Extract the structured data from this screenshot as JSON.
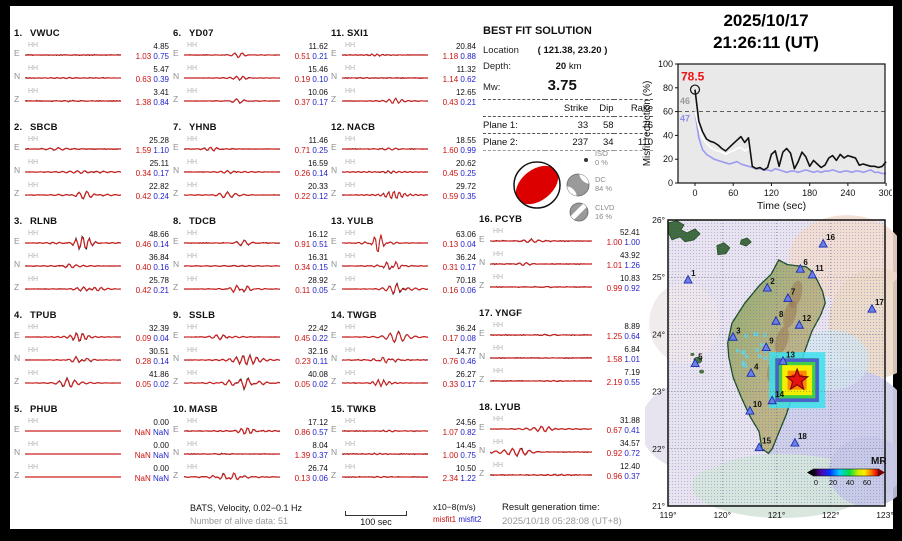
{
  "header": {
    "date": "2025/10/17",
    "time": "21:26:11  (UT)"
  },
  "best_fit": {
    "title": "BEST FIT SOLUTION",
    "location_label": "Location",
    "location_value": "( 121.38,  23.20 )",
    "depth_label": "Depth:",
    "depth_value": "20",
    "depth_unit": "km",
    "mw_label": "Mw:",
    "mw_value": "3.75",
    "table": {
      "headers": [
        "Strike",
        "Dip",
        "Rake"
      ],
      "rows": [
        {
          "label": "Plane 1:",
          "strike": "33",
          "dip": "58",
          "rake": "76"
        },
        {
          "label": "Plane 2:",
          "strike": "237",
          "dip": "34",
          "rake": "110"
        }
      ]
    },
    "decomposition": [
      {
        "name": "ISO",
        "pct": "0 %"
      },
      {
        "name": "DC",
        "pct": "84 %"
      },
      {
        "name": "CLVD",
        "pct": "16 %"
      }
    ]
  },
  "stations": [
    {
      "num": "1.",
      "code": "VWUC",
      "channels": [
        {
          "ch": "E",
          "band": "HH",
          "amp": "4.85",
          "m1": "1.03",
          "m2": "0.75"
        },
        {
          "ch": "N",
          "band": "HH",
          "amp": "5.47",
          "m1": "0.63",
          "m2": "0.39"
        },
        {
          "ch": "Z",
          "band": "HH",
          "amp": "3.41",
          "m1": "1.38",
          "m2": "0.84"
        }
      ]
    },
    {
      "num": "2.",
      "code": "SBCB",
      "channels": [
        {
          "ch": "E",
          "band": "HH",
          "amp": "25.28",
          "m1": "1.59",
          "m2": "1.10"
        },
        {
          "ch": "N",
          "band": "HH",
          "amp": "25.11",
          "m1": "0.34",
          "m2": "0.17"
        },
        {
          "ch": "Z",
          "band": "HH",
          "amp": "22.82",
          "m1": "0.42",
          "m2": "0.24"
        }
      ]
    },
    {
      "num": "3.",
      "code": "RLNB",
      "channels": [
        {
          "ch": "E",
          "band": "HH",
          "amp": "48.66",
          "m1": "0.46",
          "m2": "0.14"
        },
        {
          "ch": "N",
          "band": "HH",
          "amp": "36.84",
          "m1": "0.40",
          "m2": "0.16"
        },
        {
          "ch": "Z",
          "band": "HH",
          "amp": "25.78",
          "m1": "0.42",
          "m2": "0.21"
        }
      ]
    },
    {
      "num": "4.",
      "code": "TPUB",
      "channels": [
        {
          "ch": "E",
          "band": "HH",
          "amp": "32.39",
          "m1": "0.09",
          "m2": "0.04"
        },
        {
          "ch": "N",
          "band": "HH",
          "amp": "30.51",
          "m1": "0.28",
          "m2": "0.14"
        },
        {
          "ch": "Z",
          "band": "HH",
          "amp": "41.86",
          "m1": "0.05",
          "m2": "0.02"
        }
      ]
    },
    {
      "num": "5.",
      "code": "PHUB",
      "channels": [
        {
          "ch": "E",
          "band": "HH",
          "amp": "0.00",
          "m1": "NaN",
          "m2": "NaN"
        },
        {
          "ch": "N",
          "band": "HH",
          "amp": "0.00",
          "m1": "NaN",
          "m2": "NaN"
        },
        {
          "ch": "Z",
          "band": "HH",
          "amp": "0.00",
          "m1": "NaN",
          "m2": "NaN"
        }
      ]
    },
    {
      "num": "6.",
      "code": "YD07",
      "channels": [
        {
          "ch": "E",
          "band": "HH",
          "amp": "11.62",
          "m1": "0.51",
          "m2": "0.21"
        },
        {
          "ch": "N",
          "band": "HH",
          "amp": "15.46",
          "m1": "0.19",
          "m2": "0.10"
        },
        {
          "ch": "Z",
          "band": "HH",
          "amp": "10.06",
          "m1": "0.37",
          "m2": "0.17"
        }
      ]
    },
    {
      "num": "7.",
      "code": "YHNB",
      "channels": [
        {
          "ch": "E",
          "band": "HH",
          "amp": "11.46",
          "m1": "0.71",
          "m2": "0.25"
        },
        {
          "ch": "N",
          "band": "HH",
          "amp": "16.59",
          "m1": "0.26",
          "m2": "0.14"
        },
        {
          "ch": "Z",
          "band": "HH",
          "amp": "20.33",
          "m1": "0.22",
          "m2": "0.12"
        }
      ]
    },
    {
      "num": "8.",
      "code": "TDCB",
      "channels": [
        {
          "ch": "E",
          "band": "HH",
          "amp": "16.12",
          "m1": "0.91",
          "m2": "0.51"
        },
        {
          "ch": "N",
          "band": "HH",
          "amp": "16.31",
          "m1": "0.34",
          "m2": "0.15"
        },
        {
          "ch": "Z",
          "band": "HH",
          "amp": "28.92",
          "m1": "0.11",
          "m2": "0.05"
        }
      ]
    },
    {
      "num": "9.",
      "code": "SSLB",
      "channels": [
        {
          "ch": "E",
          "band": "HH",
          "amp": "22.42",
          "m1": "0.45",
          "m2": "0.22"
        },
        {
          "ch": "N",
          "band": "HH",
          "amp": "32.16",
          "m1": "0.23",
          "m2": "0.11"
        },
        {
          "ch": "Z",
          "band": "HH",
          "amp": "40.08",
          "m1": "0.05",
          "m2": "0.02"
        }
      ]
    },
    {
      "num": "10.",
      "code": "MASB",
      "channels": [
        {
          "ch": "E",
          "band": "HH",
          "amp": "17.12",
          "m1": "0.86",
          "m2": "0.57"
        },
        {
          "ch": "N",
          "band": "HH",
          "amp": "8.04",
          "m1": "1.39",
          "m2": "0.37"
        },
        {
          "ch": "Z",
          "band": "HH",
          "amp": "26.74",
          "m1": "0.13",
          "m2": "0.06"
        }
      ]
    },
    {
      "num": "11.",
      "code": "SXI1",
      "channels": [
        {
          "ch": "E",
          "band": "HH",
          "amp": "20.84",
          "m1": "1.18",
          "m2": "0.88"
        },
        {
          "ch": "N",
          "band": "HH",
          "amp": "11.32",
          "m1": "1.14",
          "m2": "0.62"
        },
        {
          "ch": "Z",
          "band": "HH",
          "amp": "12.65",
          "m1": "0.43",
          "m2": "0.21"
        }
      ]
    },
    {
      "num": "12.",
      "code": "NACB",
      "channels": [
        {
          "ch": "E",
          "band": "HH",
          "amp": "18.55",
          "m1": "1.60",
          "m2": "0.99"
        },
        {
          "ch": "N",
          "band": "HH",
          "amp": "20.62",
          "m1": "0.45",
          "m2": "0.25"
        },
        {
          "ch": "Z",
          "band": "HH",
          "amp": "29.72",
          "m1": "0.59",
          "m2": "0.35"
        }
      ]
    },
    {
      "num": "13.",
      "code": "YULB",
      "channels": [
        {
          "ch": "E",
          "band": "HH",
          "amp": "63.06",
          "m1": "0.13",
          "m2": "0.04"
        },
        {
          "ch": "N",
          "band": "HH",
          "amp": "36.24",
          "m1": "0.31",
          "m2": "0.17"
        },
        {
          "ch": "Z",
          "band": "HH",
          "amp": "70.18",
          "m1": "0.16",
          "m2": "0.06"
        }
      ]
    },
    {
      "num": "14.",
      "code": "TWGB",
      "channels": [
        {
          "ch": "E",
          "band": "HH",
          "amp": "36.24",
          "m1": "0.17",
          "m2": "0.08"
        },
        {
          "ch": "N",
          "band": "HH",
          "amp": "14.77",
          "m1": "0.76",
          "m2": "0.46"
        },
        {
          "ch": "Z",
          "band": "HH",
          "amp": "26.27",
          "m1": "0.33",
          "m2": "0.17"
        }
      ]
    },
    {
      "num": "15.",
      "code": "TWKB",
      "channels": [
        {
          "ch": "E",
          "band": "HH",
          "amp": "24.56",
          "m1": "1.07",
          "m2": "0.82"
        },
        {
          "ch": "N",
          "band": "HH",
          "amp": "14.45",
          "m1": "1.00",
          "m2": "0.75"
        },
        {
          "ch": "Z",
          "band": "HH",
          "amp": "10.50",
          "m1": "2.34",
          "m2": "1.22"
        }
      ]
    },
    {
      "num": "16.",
      "code": "PCYB",
      "channels": [
        {
          "ch": "E",
          "band": "HH",
          "amp": "52.41",
          "m1": "1.00",
          "m2": "1.00"
        },
        {
          "ch": "N",
          "band": "HH",
          "amp": "43.92",
          "m1": "1.01",
          "m2": "1.26"
        },
        {
          "ch": "Z",
          "band": "HH",
          "amp": "10.83",
          "m1": "0.99",
          "m2": "0.92"
        }
      ]
    },
    {
      "num": "17.",
      "code": "YNGF",
      "channels": [
        {
          "ch": "E",
          "band": "HH",
          "amp": "8.89",
          "m1": "1.25",
          "m2": "0.64"
        },
        {
          "ch": "N",
          "band": "HH",
          "amp": "6.84",
          "m1": "1.58",
          "m2": "1.01"
        },
        {
          "ch": "Z",
          "band": "HH",
          "amp": "7.19",
          "m1": "2.19",
          "m2": "0.55"
        }
      ]
    },
    {
      "num": "18.",
      "code": "LYUB",
      "channels": [
        {
          "ch": "E",
          "band": "HH",
          "amp": "31.88",
          "m1": "0.67",
          "m2": "0.41"
        },
        {
          "ch": "N",
          "band": "HH",
          "amp": "34.57",
          "m1": "0.92",
          "m2": "0.72"
        },
        {
          "ch": "Z",
          "band": "HH",
          "amp": "12.40",
          "m1": "0.96",
          "m2": "0.37"
        }
      ]
    }
  ],
  "footer": {
    "filter": "BATS, Velocity, 0.02−0.1 Hz",
    "alive": "Number of alive data: 51",
    "scalebar_label": "100 sec",
    "units": "x10−8(m/s)",
    "misfit1_label": "misfit1",
    "misfit2_label": "misfit2",
    "result_label": "Result generation time:",
    "result_time": "2025/10/18 05:28:08 (UT+8)"
  },
  "colors": {
    "misfit1": "#cc1111",
    "misfit2": "#2222cc",
    "synthetic_trace": "#cc2222",
    "observed_trace": "#1a1a1a",
    "station_marker": "#6b7fe8",
    "epicenter": "#e81010",
    "beachball_red": "#dd0000"
  },
  "chart_data": {
    "type": "line",
    "title": "",
    "xlabel": "Time (sec)",
    "ylabel": "Misfit reduction (%)",
    "xlim": [
      -25,
      305
    ],
    "ylim": [
      0,
      100
    ],
    "x_ticks": [
      0,
      60,
      120,
      180,
      240,
      300
    ],
    "y_ticks": [
      0,
      20,
      40,
      60,
      80,
      100
    ],
    "threshold_line": 60,
    "peak_annotation": {
      "text": "78.5",
      "x": 0,
      "y": 78.5
    },
    "count_annotations": [
      {
        "text": "46",
        "color": "#9a9a9a",
        "y": 69
      },
      {
        "text": "47",
        "color": "#8f8fee",
        "y": 54
      }
    ],
    "x_step": 6,
    "series": [
      {
        "name": "misfit-reduction-best",
        "color": "#111111",
        "y": [
          78.5,
          52,
          43,
          37,
          35,
          34,
          32,
          29,
          27,
          30,
          33,
          36,
          39,
          34,
          38,
          14,
          12,
          13,
          11,
          13,
          24,
          27,
          14,
          26,
          29,
          25,
          12,
          18,
          26,
          22,
          14,
          19,
          16,
          13,
          15,
          21,
          23,
          19,
          24,
          21,
          23,
          22,
          21,
          15,
          16,
          15,
          14,
          14,
          13,
          14,
          18
        ]
      },
      {
        "name": "misfit-reduction-mid",
        "color": "#ffffff",
        "y": [
          60,
          46,
          38,
          33,
          30,
          28,
          27,
          26,
          24,
          26,
          27,
          29,
          30,
          27,
          29,
          null,
          null,
          null,
          null,
          null,
          null,
          null,
          null,
          null,
          null,
          null,
          null,
          null,
          null,
          null,
          null,
          null,
          null,
          null,
          null,
          null,
          null,
          null,
          null,
          null,
          null,
          null,
          null,
          null,
          null,
          null,
          null,
          null,
          null,
          null,
          null
        ]
      },
      {
        "name": "misfit-reduction-reference",
        "color": "#9b9bf0",
        "y": [
          60,
          38,
          28,
          24,
          22,
          20,
          19,
          18,
          17,
          16,
          17,
          18,
          16,
          15,
          14,
          13,
          12,
          12,
          11,
          11,
          10,
          12,
          11,
          10,
          9,
          10,
          10,
          9,
          10,
          11,
          10,
          9,
          10,
          9,
          10,
          10,
          11,
          10,
          9,
          10,
          10,
          9,
          10,
          10,
          9,
          10,
          11,
          9,
          9,
          8,
          8
        ]
      }
    ]
  },
  "map": {
    "lon_ticks": [
      "119°",
      "120°",
      "121°",
      "122°",
      "123°"
    ],
    "lat_ticks": [
      "26°",
      "25°",
      "24°",
      "23°",
      "22°",
      "21°"
    ],
    "lon_range": [
      119,
      123
    ],
    "lat_range": [
      21,
      26
    ],
    "epicenter": {
      "lon": 121.38,
      "lat": 23.2
    },
    "colorbar": {
      "label": "MR",
      "ticks": [
        "0",
        "20",
        "40",
        "60"
      ]
    },
    "stations": [
      {
        "n": "1",
        "lon": 119.37,
        "lat": 24.95
      },
      {
        "n": "2",
        "lon": 120.83,
        "lat": 24.81
      },
      {
        "n": "3",
        "lon": 120.2,
        "lat": 23.95
      },
      {
        "n": "4",
        "lon": 120.53,
        "lat": 23.32
      },
      {
        "n": "5",
        "lon": 119.5,
        "lat": 23.49
      },
      {
        "n": "6",
        "lon": 121.44,
        "lat": 25.14
      },
      {
        "n": "7",
        "lon": 121.21,
        "lat": 24.63
      },
      {
        "n": "8",
        "lon": 120.99,
        "lat": 24.23
      },
      {
        "n": "9",
        "lon": 120.81,
        "lat": 23.77
      },
      {
        "n": "10",
        "lon": 120.51,
        "lat": 22.66
      },
      {
        "n": "11",
        "lon": 121.66,
        "lat": 25.04
      },
      {
        "n": "12",
        "lon": 121.42,
        "lat": 24.16
      },
      {
        "n": "13",
        "lon": 121.12,
        "lat": 23.53
      },
      {
        "n": "14",
        "lon": 120.92,
        "lat": 22.84
      },
      {
        "n": "15",
        "lon": 120.68,
        "lat": 22.02
      },
      {
        "n": "16",
        "lon": 121.86,
        "lat": 25.58
      },
      {
        "n": "17",
        "lon": 122.76,
        "lat": 24.44
      },
      {
        "n": "18",
        "lon": 121.34,
        "lat": 22.1
      }
    ]
  }
}
